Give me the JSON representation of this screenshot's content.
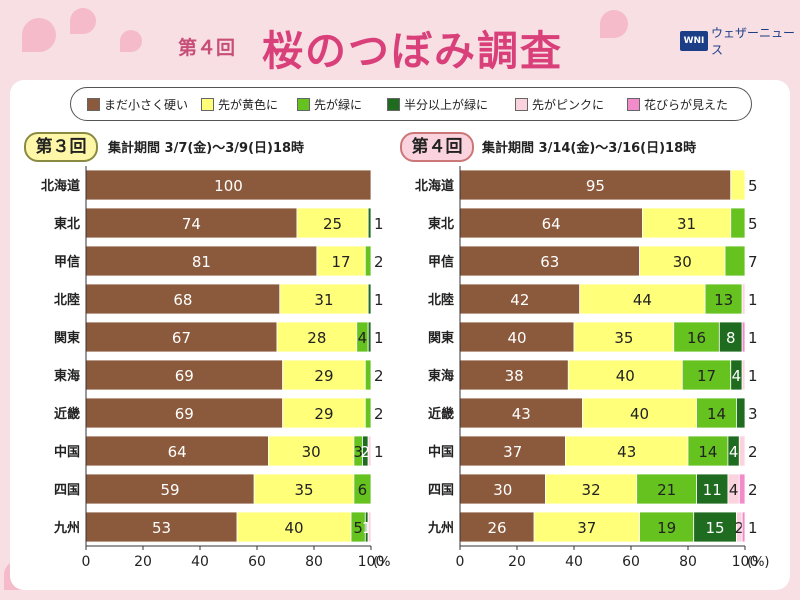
{
  "title": {
    "round_label": "第４回",
    "main": "桜のつぼみ調査"
  },
  "brand": {
    "logo_text": "WNI",
    "name": "ウェザーニュース"
  },
  "legend": [
    {
      "label": "まだ小さく硬い",
      "color": "#8b5a3c"
    },
    {
      "label": "先が黄色に",
      "color": "#ffff7a"
    },
    {
      "label": "先が緑に",
      "color": "#66c21f"
    },
    {
      "label": "半分以上が緑に",
      "color": "#1f6b1f"
    },
    {
      "label": "先がピンクに",
      "color": "#fbd3de"
    },
    {
      "label": "花びらが見えた",
      "color": "#f28bc9"
    }
  ],
  "colors": {
    "tick": "#222222",
    "accent": "#d9407a",
    "frame_bg": "#f7dfe4"
  },
  "chart_data": [
    {
      "type": "bar",
      "stacked": true,
      "orientation": "horizontal",
      "badge": "第３回",
      "period": "集計期間 3/7(金)〜3/9(日)18時",
      "categories": [
        "北海道",
        "東北",
        "甲信",
        "北陸",
        "関東",
        "東海",
        "近畿",
        "中国",
        "四国",
        "九州"
      ],
      "series": [
        {
          "name": "まだ小さく硬い",
          "values": [
            100,
            74,
            81,
            68,
            67,
            69,
            69,
            64,
            59,
            53
          ]
        },
        {
          "name": "先が黄色に",
          "values": [
            0,
            25,
            17,
            31,
            28,
            29,
            29,
            30,
            35,
            40
          ]
        },
        {
          "name": "先が緑に",
          "values": [
            0,
            0,
            2,
            0,
            4,
            2,
            2,
            3,
            6,
            5
          ]
        },
        {
          "name": "半分以上が緑に",
          "values": [
            0,
            1,
            0,
            1,
            1,
            0,
            0,
            2,
            0,
            1
          ]
        },
        {
          "name": "先がピンクに",
          "values": [
            0,
            0,
            0,
            0,
            0,
            0,
            0,
            1,
            0,
            1
          ]
        },
        {
          "name": "花びらが見えた",
          "values": [
            0,
            0,
            0,
            0,
            0,
            0,
            0,
            0,
            0,
            0
          ]
        }
      ],
      "value_labels": [
        [
          "100",
          "",
          "",
          "",
          "",
          ""
        ],
        [
          "74",
          "25",
          "",
          "",
          "",
          ""
        ],
        [
          "81",
          "17",
          "",
          "",
          "",
          ""
        ],
        [
          "68",
          "31",
          "",
          "",
          "",
          ""
        ],
        [
          "67",
          "28",
          "4",
          "",
          "",
          ""
        ],
        [
          "69",
          "29",
          "",
          "",
          "",
          ""
        ],
        [
          "69",
          "29",
          "",
          "",
          "",
          ""
        ],
        [
          "64",
          "30",
          "3",
          "2",
          "",
          ""
        ],
        [
          "59",
          "35",
          "6",
          "",
          "",
          ""
        ],
        [
          "53",
          "40",
          "5",
          "1",
          "",
          ""
        ]
      ],
      "outside_labels": [
        "",
        "1",
        "2",
        "1",
        "1",
        "2",
        "2",
        "1",
        "",
        ""
      ],
      "xlim": [
        0,
        100
      ],
      "x_ticks": [
        "0",
        "20",
        "40",
        "60",
        "80",
        "100"
      ],
      "x_unit": "(%)"
    },
    {
      "type": "bar",
      "stacked": true,
      "orientation": "horizontal",
      "badge": "第４回",
      "period": "集計期間 3/14(金)〜3/16(日)18時",
      "categories": [
        "北海道",
        "東北",
        "甲信",
        "北陸",
        "関東",
        "東海",
        "近畿",
        "中国",
        "四国",
        "九州"
      ],
      "series": [
        {
          "name": "まだ小さく硬い",
          "values": [
            95,
            64,
            63,
            42,
            40,
            38,
            43,
            37,
            30,
            26
          ]
        },
        {
          "name": "先が黄色に",
          "values": [
            5,
            31,
            30,
            44,
            35,
            40,
            40,
            43,
            32,
            37
          ]
        },
        {
          "name": "先が緑に",
          "values": [
            0,
            5,
            7,
            13,
            16,
            17,
            14,
            14,
            21,
            19
          ]
        },
        {
          "name": "半分以上が緑に",
          "values": [
            0,
            0,
            0,
            0,
            8,
            4,
            3,
            4,
            11,
            15
          ]
        },
        {
          "name": "先がピンクに",
          "values": [
            0,
            0,
            0,
            1,
            0,
            1,
            0,
            2,
            4,
            2
          ]
        },
        {
          "name": "花びらが見えた",
          "values": [
            0,
            0,
            0,
            0,
            1,
            0,
            0,
            0,
            2,
            1
          ]
        }
      ],
      "value_labels": [
        [
          "95",
          "",
          "",
          "",
          "",
          ""
        ],
        [
          "64",
          "31",
          "",
          "",
          "",
          ""
        ],
        [
          "63",
          "30",
          "",
          "",
          "",
          ""
        ],
        [
          "42",
          "44",
          "13",
          "",
          "",
          ""
        ],
        [
          "40",
          "35",
          "16",
          "8",
          "",
          ""
        ],
        [
          "38",
          "40",
          "17",
          "4",
          "",
          ""
        ],
        [
          "43",
          "40",
          "14",
          "",
          "",
          ""
        ],
        [
          "37",
          "43",
          "14",
          "4",
          "",
          ""
        ],
        [
          "30",
          "32",
          "21",
          "11",
          "4",
          ""
        ],
        [
          "26",
          "37",
          "19",
          "15",
          "2",
          ""
        ]
      ],
      "outside_labels": [
        "5",
        "5",
        "7",
        "1",
        "1",
        "1",
        "3",
        "2",
        "2",
        "1"
      ],
      "xlim": [
        0,
        100
      ],
      "x_ticks": [
        "0",
        "20",
        "40",
        "60",
        "80",
        "100"
      ],
      "x_unit": "(%)"
    }
  ]
}
